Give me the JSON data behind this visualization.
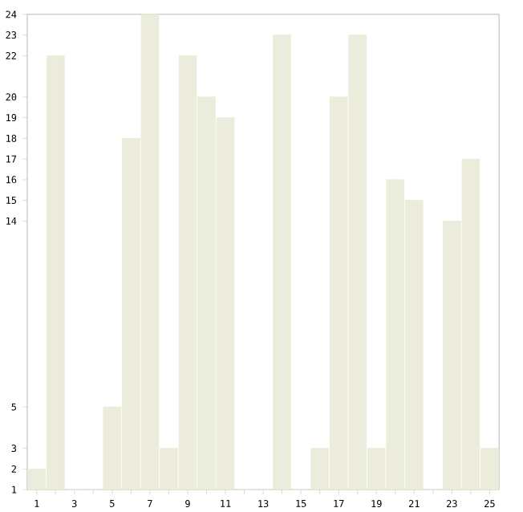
{
  "chart_data": {
    "type": "bar",
    "categories": [
      "1",
      null,
      "3",
      null,
      "5",
      null,
      "7",
      null,
      "9",
      null,
      "11",
      null,
      "13",
      null,
      "15",
      null,
      "17",
      null,
      "19",
      null,
      "21",
      null,
      "23",
      null,
      "25"
    ],
    "values": [
      2,
      22,
      1,
      1,
      5,
      18,
      24,
      3,
      22,
      20,
      19,
      1,
      1,
      23,
      1,
      3,
      20,
      23,
      3,
      16,
      15,
      1,
      14,
      17,
      3
    ],
    "color": "#ececdc",
    "ylim": [
      1,
      24
    ],
    "yticks": [
      1,
      2,
      3,
      5,
      14,
      15,
      16,
      17,
      18,
      19,
      20,
      22,
      23,
      24
    ],
    "grid": false
  }
}
